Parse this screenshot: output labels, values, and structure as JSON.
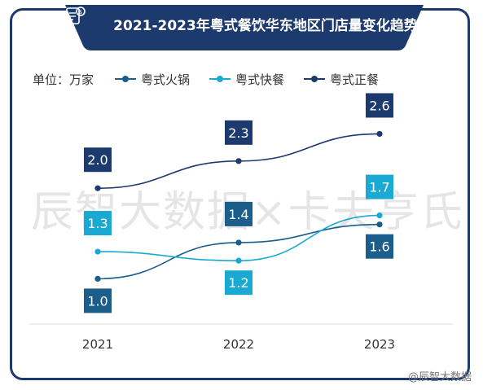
{
  "header": {
    "title": "2021-2023年粤式餐饮华东地区门店量变化趋势"
  },
  "legend": {
    "unit_label": "单位：万家"
  },
  "watermark": "辰智大数据×卡夫亨氏",
  "corner_mark": "@辰智大数据",
  "colors": {
    "frame": "#1c3a6e",
    "hotpot": "#1b5e8c",
    "fastfood": "#1aa9d3",
    "formal": "#1c3a6e"
  },
  "chart_data": {
    "type": "line",
    "title": "2021-2023年粤式餐饮华东地区门店量变化趋势",
    "categories": [
      "2021",
      "2022",
      "2023"
    ],
    "ylabel": "万家",
    "series": [
      {
        "name": "粤式火锅",
        "values": [
          1.0,
          1.4,
          1.6
        ],
        "color": "#1b5e8c",
        "label_position": [
          "below",
          "above",
          "below"
        ]
      },
      {
        "name": "粤式快餐",
        "values": [
          1.3,
          1.2,
          1.7
        ],
        "color": "#1aa9d3",
        "label_position": [
          "above",
          "below",
          "above"
        ]
      },
      {
        "name": "粤式正餐",
        "values": [
          2.0,
          2.3,
          2.6
        ],
        "color": "#1c3a6e",
        "label_position": [
          "above",
          "above",
          "above"
        ]
      }
    ],
    "ylim": [
      0.5,
      3.0
    ],
    "grid": false,
    "legend_position": "top-left"
  }
}
